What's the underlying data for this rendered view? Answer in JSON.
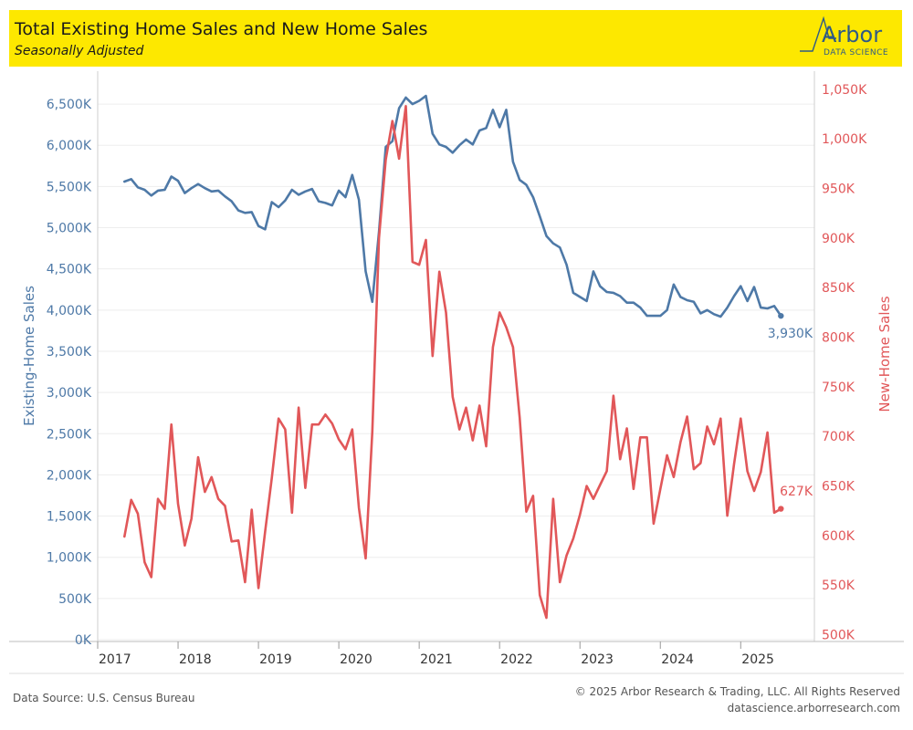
{
  "header": {
    "title": "Total Existing Home Sales and New Home Sales",
    "subtitle": "Seasonally Adjusted"
  },
  "logo": {
    "word": "Arbor",
    "sub": "DATA SCIENCE"
  },
  "footer": {
    "source": "Data Source: U.S. Census Bureau",
    "copyright": "© 2025 Arbor Research & Trading, LLC. All Rights Reserved",
    "website": "datascience.arborresearch.com"
  },
  "colors": {
    "existing": "#4e79a7",
    "new": "#e15759",
    "banner": "#fde800"
  },
  "chart_data": {
    "type": "line",
    "x_start": "2017-05",
    "x_step": "month",
    "xlim": [
      "2017-01",
      "2025-12"
    ],
    "x_ticks": [
      "2017",
      "2018",
      "2019",
      "2020",
      "2021",
      "2022",
      "2023",
      "2024",
      "2025"
    ],
    "left_axis": {
      "label": "Existing-Home Sales",
      "ylim": [
        0,
        6800
      ],
      "ticks": [
        0,
        500,
        1000,
        1500,
        2000,
        2500,
        3000,
        3500,
        4000,
        4500,
        5000,
        5500,
        6000,
        6500
      ],
      "tick_labels": [
        "0K",
        "500K",
        "1,000K",
        "1,500K",
        "2,000K",
        "2,500K",
        "3,000K",
        "3,500K",
        "4,000K",
        "4,500K",
        "5,000K",
        "5,500K",
        "6,000K",
        "6,500K"
      ]
    },
    "right_axis": {
      "label": "New-Home Sales",
      "ylim": [
        495,
        1060
      ],
      "ticks": [
        500,
        550,
        600,
        650,
        700,
        750,
        800,
        850,
        900,
        950,
        1000,
        1050
      ],
      "tick_labels": [
        "500K",
        "550K",
        "600K",
        "650K",
        "700K",
        "750K",
        "800K",
        "850K",
        "900K",
        "950K",
        "1,000K",
        "1,050K"
      ]
    },
    "series": [
      {
        "name": "Existing-Home Sales",
        "axis": "left",
        "last_label": "3,930K",
        "values": [
          5560,
          5590,
          5490,
          5460,
          5390,
          5450,
          5460,
          5620,
          5570,
          5420,
          5480,
          5530,
          5480,
          5440,
          5450,
          5380,
          5320,
          5210,
          5180,
          5190,
          5020,
          4980,
          5310,
          5250,
          5330,
          5460,
          5400,
          5440,
          5470,
          5320,
          5300,
          5270,
          5450,
          5370,
          5640,
          5340,
          4470,
          4100,
          4950,
          5980,
          6050,
          6450,
          6580,
          6500,
          6540,
          6600,
          6140,
          6010,
          5980,
          5910,
          6000,
          6070,
          6010,
          6180,
          6210,
          6430,
          6220,
          6430,
          5800,
          5580,
          5520,
          5370,
          5140,
          4900,
          4810,
          4760,
          4550,
          4210,
          4160,
          4110,
          4470,
          4290,
          4220,
          4210,
          4170,
          4090,
          4090,
          4030,
          3930,
          3930,
          3930,
          4000,
          4310,
          4160,
          4120,
          4100,
          3960,
          4000,
          3950,
          3920,
          4030,
          4170,
          4290,
          4110,
          4280,
          4030,
          4020,
          4050,
          3930
        ]
      },
      {
        "name": "New-Home Sales",
        "axis": "right",
        "last_label": "627K",
        "values": [
          599,
          636,
          622,
          573,
          558,
          637,
          627,
          712,
          632,
          590,
          617,
          679,
          644,
          659,
          637,
          630,
          594,
          595,
          553,
          626,
          547,
          604,
          658,
          718,
          707,
          623,
          729,
          648,
          712,
          712,
          722,
          713,
          697,
          687,
          707,
          628,
          577,
          705,
          900,
          979,
          1018,
          980,
          1033,
          876,
          873,
          898,
          781,
          866,
          825,
          740,
          707,
          729,
          696,
          731,
          690,
          790,
          825,
          810,
          790,
          719,
          624,
          640,
          540,
          517,
          637,
          553,
          580,
          597,
          621,
          650,
          637,
          651,
          665,
          741,
          677,
          708,
          647,
          699,
          699,
          612,
          647,
          681,
          659,
          694,
          720,
          667,
          673,
          710,
          692,
          718,
          620,
          672,
          718,
          665,
          645,
          664,
          704,
          623,
          627
        ]
      }
    ]
  }
}
